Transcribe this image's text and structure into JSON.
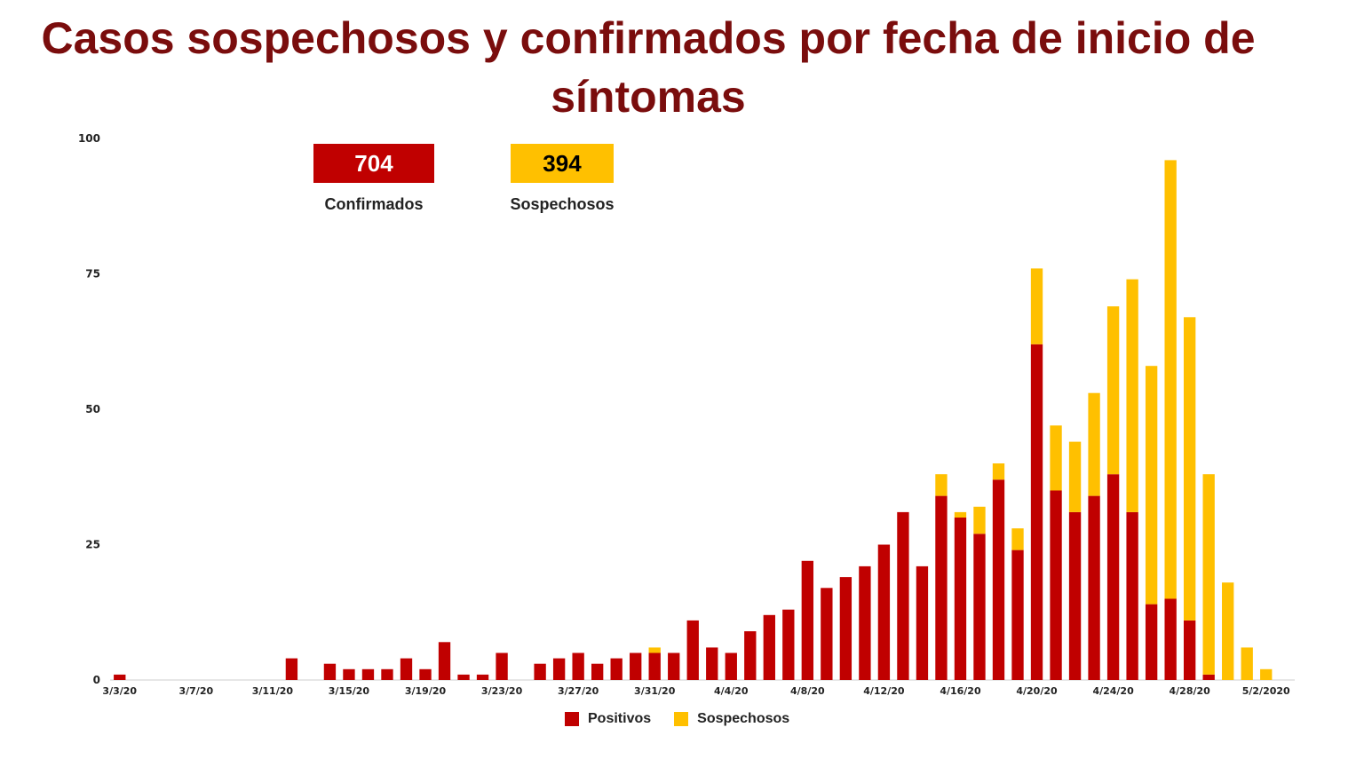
{
  "title": "Casos sospechosos y confirmados  por fecha de inicio de síntomas",
  "kpis": {
    "confirmed": {
      "value": "704",
      "label": "Confirmados",
      "color": "#c00000"
    },
    "suspected": {
      "value": "394",
      "label": "Sospechosos",
      "color": "#ffc000"
    }
  },
  "chart_data": {
    "type": "bar",
    "stacked": true,
    "ylim": [
      0,
      100
    ],
    "yticks": [
      "0",
      "25",
      "50",
      "75",
      "100"
    ],
    "xlabels": [
      "3/3/20",
      "3/7/20",
      "3/11/20",
      "3/15/20",
      "3/19/20",
      "3/23/20",
      "3/27/20",
      "3/31/20",
      "4/4/20",
      "4/8/20",
      "4/12/20",
      "4/16/20",
      "4/20/20",
      "4/24/20",
      "4/28/20",
      "5/2/2020"
    ],
    "categories": [
      "3/3/20",
      "3/4/20",
      "3/5/20",
      "3/6/20",
      "3/7/20",
      "3/8/20",
      "3/9/20",
      "3/10/20",
      "3/11/20",
      "3/12/20",
      "3/13/20",
      "3/14/20",
      "3/15/20",
      "3/16/20",
      "3/17/20",
      "3/18/20",
      "3/19/20",
      "3/20/20",
      "3/21/20",
      "3/22/20",
      "3/23/20",
      "3/24/20",
      "3/25/20",
      "3/26/20",
      "3/27/20",
      "3/28/20",
      "3/29/20",
      "3/30/20",
      "3/31/20",
      "4/1/20",
      "4/2/20",
      "4/3/20",
      "4/4/20",
      "4/5/20",
      "4/6/20",
      "4/7/20",
      "4/8/20",
      "4/9/20",
      "4/10/20",
      "4/11/20",
      "4/12/20",
      "4/13/20",
      "4/14/20",
      "4/15/20",
      "4/16/20",
      "4/17/20",
      "4/18/20",
      "4/19/20",
      "4/20/20",
      "4/21/20",
      "4/22/20",
      "4/23/20",
      "4/24/20",
      "4/25/20",
      "4/26/20",
      "4/27/20",
      "4/28/20",
      "4/29/20",
      "4/30/20",
      "5/1/20",
      "5/2/2020",
      "5/3/20"
    ],
    "series": [
      {
        "name": "Positivos",
        "color": "#c00000",
        "values": [
          1,
          0,
          0,
          0,
          0,
          0,
          0,
          0,
          0,
          4,
          0,
          3,
          2,
          2,
          2,
          4,
          2,
          7,
          1,
          1,
          5,
          0,
          3,
          4,
          5,
          3,
          4,
          5,
          5,
          5,
          11,
          6,
          5,
          9,
          12,
          13,
          22,
          17,
          19,
          21,
          25,
          31,
          21,
          34,
          30,
          27,
          37,
          24,
          62,
          35,
          31,
          34,
          38,
          31,
          14,
          15,
          11,
          1,
          0,
          0,
          0,
          0
        ]
      },
      {
        "name": "Sospechosos",
        "color": "#ffc000",
        "values": [
          0,
          0,
          0,
          0,
          0,
          0,
          0,
          0,
          0,
          0,
          0,
          0,
          0,
          0,
          0,
          0,
          0,
          0,
          0,
          0,
          0,
          0,
          0,
          0,
          0,
          0,
          0,
          0,
          1,
          0,
          0,
          0,
          0,
          0,
          0,
          0,
          0,
          0,
          0,
          0,
          0,
          0,
          0,
          4,
          1,
          5,
          3,
          4,
          14,
          12,
          13,
          19,
          31,
          43,
          44,
          81,
          56,
          37,
          18,
          6,
          2,
          0
        ]
      }
    ],
    "legend": "bottom"
  }
}
